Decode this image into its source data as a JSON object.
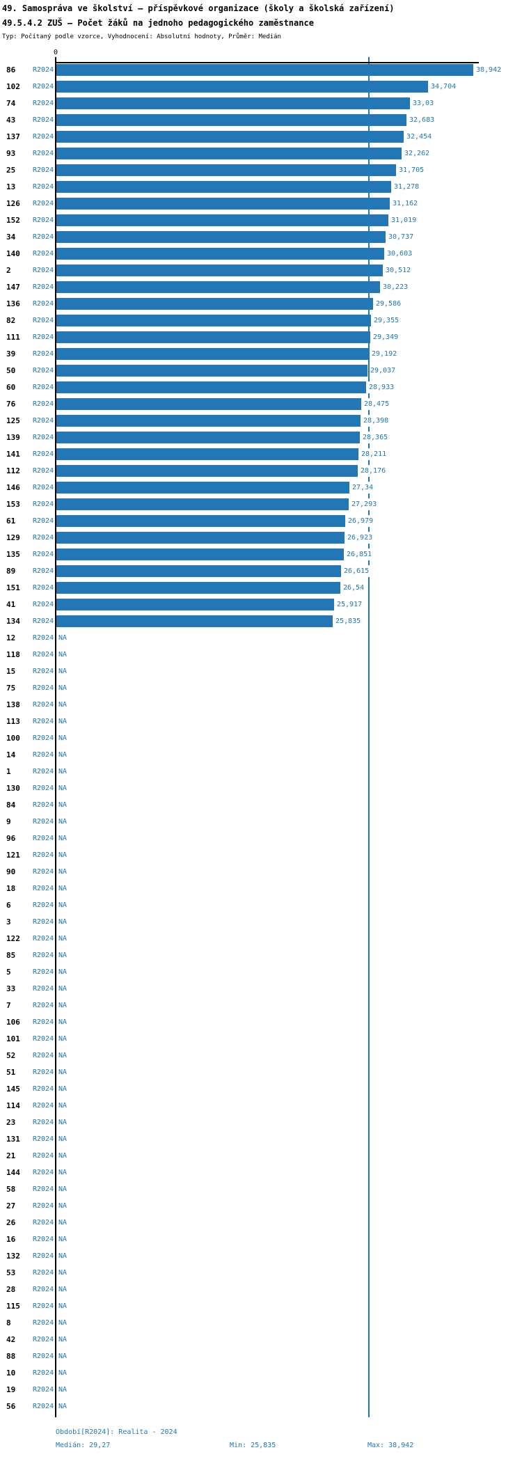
{
  "chart_data": {
    "type": "bar",
    "orientation": "horizontal",
    "title": "49. Samospráva ve školství – příspěvkové organizace (školy a školská zařízení)",
    "subtitle": "49.5.4.2 ZUŠ – Počet žáků na jednoho pedagogického zaměstnance",
    "meta": "Typ: Počítaný podle vzorce, Vyhodnocení: Absolutní hodnoty, Průměr: Medián",
    "period_label": "R2024",
    "value_axis": {
      "zero_label": "0",
      "xlim": [
        0,
        38.942
      ],
      "median_line_value": 29.27,
      "grid": false
    },
    "legend_position": "none",
    "bar_color": "#2277b4",
    "na_text": "NA",
    "rows": [
      {
        "id": "86",
        "value": 38.942,
        "label": "38,942"
      },
      {
        "id": "102",
        "value": 34.704,
        "label": "34,704"
      },
      {
        "id": "74",
        "value": 33.03,
        "label": "33,03"
      },
      {
        "id": "43",
        "value": 32.683,
        "label": "32,683"
      },
      {
        "id": "137",
        "value": 32.454,
        "label": "32,454"
      },
      {
        "id": "93",
        "value": 32.262,
        "label": "32,262"
      },
      {
        "id": "25",
        "value": 31.705,
        "label": "31,705"
      },
      {
        "id": "13",
        "value": 31.278,
        "label": "31,278"
      },
      {
        "id": "126",
        "value": 31.162,
        "label": "31,162"
      },
      {
        "id": "152",
        "value": 31.019,
        "label": "31,019"
      },
      {
        "id": "34",
        "value": 30.737,
        "label": "30,737"
      },
      {
        "id": "140",
        "value": 30.603,
        "label": "30,603"
      },
      {
        "id": "2",
        "value": 30.512,
        "label": "30,512"
      },
      {
        "id": "147",
        "value": 30.223,
        "label": "30,223"
      },
      {
        "id": "136",
        "value": 29.586,
        "label": "29,586"
      },
      {
        "id": "82",
        "value": 29.355,
        "label": "29,355"
      },
      {
        "id": "111",
        "value": 29.349,
        "label": "29,349"
      },
      {
        "id": "39",
        "value": 29.192,
        "label": "29,192"
      },
      {
        "id": "50",
        "value": 29.037,
        "label": "29,037"
      },
      {
        "id": "60",
        "value": 28.933,
        "label": "28,933"
      },
      {
        "id": "76",
        "value": 28.475,
        "label": "28,475"
      },
      {
        "id": "125",
        "value": 28.398,
        "label": "28,398"
      },
      {
        "id": "139",
        "value": 28.365,
        "label": "28,365"
      },
      {
        "id": "141",
        "value": 28.211,
        "label": "28,211"
      },
      {
        "id": "112",
        "value": 28.176,
        "label": "28,176"
      },
      {
        "id": "146",
        "value": 27.34,
        "label": "27,34"
      },
      {
        "id": "153",
        "value": 27.293,
        "label": "27,293"
      },
      {
        "id": "61",
        "value": 26.979,
        "label": "26,979"
      },
      {
        "id": "129",
        "value": 26.923,
        "label": "26,923"
      },
      {
        "id": "135",
        "value": 26.851,
        "label": "26,851"
      },
      {
        "id": "89",
        "value": 26.615,
        "label": "26,615"
      },
      {
        "id": "151",
        "value": 26.54,
        "label": "26,54"
      },
      {
        "id": "41",
        "value": 25.917,
        "label": "25,917"
      },
      {
        "id": "134",
        "value": 25.835,
        "label": "25,835"
      },
      {
        "id": "12",
        "value": null,
        "label": "NA"
      },
      {
        "id": "118",
        "value": null,
        "label": "NA"
      },
      {
        "id": "15",
        "value": null,
        "label": "NA"
      },
      {
        "id": "75",
        "value": null,
        "label": "NA"
      },
      {
        "id": "138",
        "value": null,
        "label": "NA"
      },
      {
        "id": "113",
        "value": null,
        "label": "NA"
      },
      {
        "id": "100",
        "value": null,
        "label": "NA"
      },
      {
        "id": "14",
        "value": null,
        "label": "NA"
      },
      {
        "id": "1",
        "value": null,
        "label": "NA"
      },
      {
        "id": "130",
        "value": null,
        "label": "NA"
      },
      {
        "id": "84",
        "value": null,
        "label": "NA"
      },
      {
        "id": "9",
        "value": null,
        "label": "NA"
      },
      {
        "id": "96",
        "value": null,
        "label": "NA"
      },
      {
        "id": "121",
        "value": null,
        "label": "NA"
      },
      {
        "id": "90",
        "value": null,
        "label": "NA"
      },
      {
        "id": "18",
        "value": null,
        "label": "NA"
      },
      {
        "id": "6",
        "value": null,
        "label": "NA"
      },
      {
        "id": "3",
        "value": null,
        "label": "NA"
      },
      {
        "id": "122",
        "value": null,
        "label": "NA"
      },
      {
        "id": "85",
        "value": null,
        "label": "NA"
      },
      {
        "id": "5",
        "value": null,
        "label": "NA"
      },
      {
        "id": "33",
        "value": null,
        "label": "NA"
      },
      {
        "id": "7",
        "value": null,
        "label": "NA"
      },
      {
        "id": "106",
        "value": null,
        "label": "NA"
      },
      {
        "id": "101",
        "value": null,
        "label": "NA"
      },
      {
        "id": "52",
        "value": null,
        "label": "NA"
      },
      {
        "id": "51",
        "value": null,
        "label": "NA"
      },
      {
        "id": "145",
        "value": null,
        "label": "NA"
      },
      {
        "id": "114",
        "value": null,
        "label": "NA"
      },
      {
        "id": "23",
        "value": null,
        "label": "NA"
      },
      {
        "id": "131",
        "value": null,
        "label": "NA"
      },
      {
        "id": "21",
        "value": null,
        "label": "NA"
      },
      {
        "id": "144",
        "value": null,
        "label": "NA"
      },
      {
        "id": "58",
        "value": null,
        "label": "NA"
      },
      {
        "id": "27",
        "value": null,
        "label": "NA"
      },
      {
        "id": "26",
        "value": null,
        "label": "NA"
      },
      {
        "id": "16",
        "value": null,
        "label": "NA"
      },
      {
        "id": "132",
        "value": null,
        "label": "NA"
      },
      {
        "id": "53",
        "value": null,
        "label": "NA"
      },
      {
        "id": "28",
        "value": null,
        "label": "NA"
      },
      {
        "id": "115",
        "value": null,
        "label": "NA"
      },
      {
        "id": "8",
        "value": null,
        "label": "NA"
      },
      {
        "id": "42",
        "value": null,
        "label": "NA"
      },
      {
        "id": "88",
        "value": null,
        "label": "NA"
      },
      {
        "id": "10",
        "value": null,
        "label": "NA"
      },
      {
        "id": "19",
        "value": null,
        "label": "NA"
      },
      {
        "id": "56",
        "value": null,
        "label": "NA"
      }
    ]
  },
  "footer": {
    "period_line": "Období[R2024]: Realita - 2024",
    "median_label": "Medián: 29,27",
    "min_label": "Min: 25,835",
    "max_label": "Max: 38,942"
  },
  "colors": {
    "bar": "#2277b4",
    "accent_text": "#1f77b4",
    "axis": "#000000",
    "background": "#ffffff"
  }
}
